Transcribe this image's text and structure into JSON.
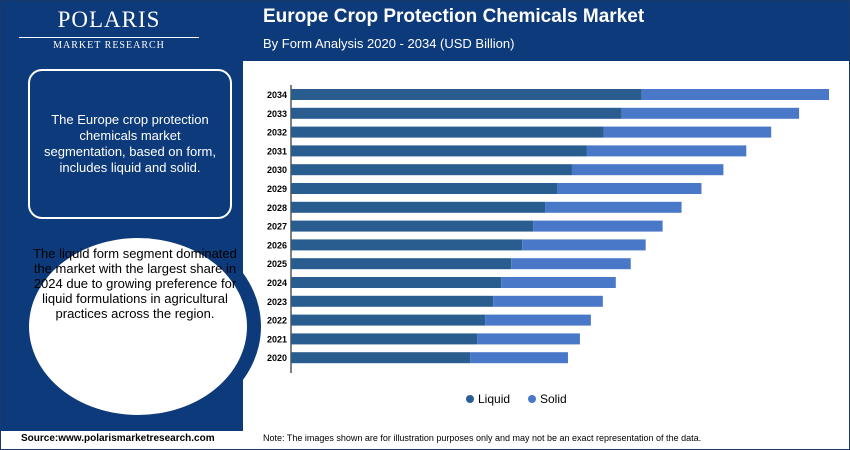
{
  "brand": {
    "name": "POLARIS",
    "sub": "MARKET RESEARCH"
  },
  "header": {
    "title": "Europe Crop Protection Chemicals Market",
    "subtitle": "By Form Analysis 2020 - 2034 (USD Billion)"
  },
  "sidebar": {
    "box_text": "The Europe crop protection chemicals market segmentation, based on form, includes liquid and solid.",
    "circle_text": "The liquid form segment dominated the market with the largest share in 2024 due to growing preference for liquid formulations in agricultural practices across the region."
  },
  "footer": {
    "source": "Source:www.polarismarketresearch.com",
    "note": "Note: The images shown are for illustration purposes only and may not be an exact representation of the data."
  },
  "colors": {
    "liquid": "#2a5d8f",
    "solid": "#4a78c8",
    "brand": "#0d3a7a"
  },
  "chart_data": {
    "type": "bar",
    "orientation": "horizontal",
    "stacked": true,
    "categories": [
      "2034",
      "2033",
      "2032",
      "2031",
      "2030",
      "2029",
      "2028",
      "2027",
      "2026",
      "2025",
      "2024",
      "2023",
      "2022",
      "2021",
      "2020"
    ],
    "series": [
      {
        "name": "Liquid",
        "values": [
          3.52,
          3.32,
          3.14,
          2.97,
          2.82,
          2.67,
          2.55,
          2.43,
          2.32,
          2.21,
          2.11,
          2.03,
          1.95,
          1.87,
          1.8
        ]
      },
      {
        "name": "Solid",
        "values": [
          1.88,
          1.78,
          1.68,
          1.6,
          1.52,
          1.45,
          1.37,
          1.3,
          1.24,
          1.2,
          1.15,
          1.1,
          1.06,
          1.03,
          0.98
        ]
      }
    ],
    "legend_position": "bottom",
    "grid": false
  }
}
